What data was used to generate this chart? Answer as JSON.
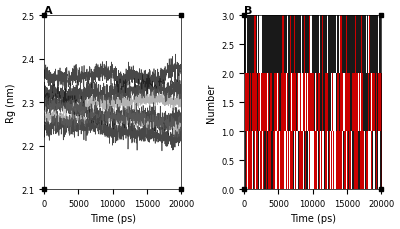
{
  "panel_A": {
    "title": "A",
    "xlabel": "Time (ps)",
    "ylabel": "Rg (nm)",
    "xlim": [
      0,
      20000
    ],
    "ylim": [
      2.1,
      2.5
    ],
    "yticks": [
      2.1,
      2.2,
      2.3,
      2.4,
      2.5
    ],
    "xticks": [
      0,
      5000,
      10000,
      15000,
      20000
    ],
    "seed": 42,
    "line_color": "#1a1a1a",
    "line_alpha": 0.8,
    "line_width": 0.5
  },
  "panel_B": {
    "title": "B",
    "xlabel": "Time (ps)",
    "ylabel": "Number",
    "xlim": [
      0,
      20000
    ],
    "ylim": [
      0,
      3
    ],
    "yticks": [
      0,
      0.5,
      1,
      1.5,
      2,
      2.5,
      3
    ],
    "xticks": [
      0,
      5000,
      10000,
      15000,
      20000
    ],
    "seed": 99
  },
  "figure": {
    "figsize": [
      4.0,
      2.3
    ],
    "dpi": 100,
    "bg_color": "#ffffff"
  }
}
